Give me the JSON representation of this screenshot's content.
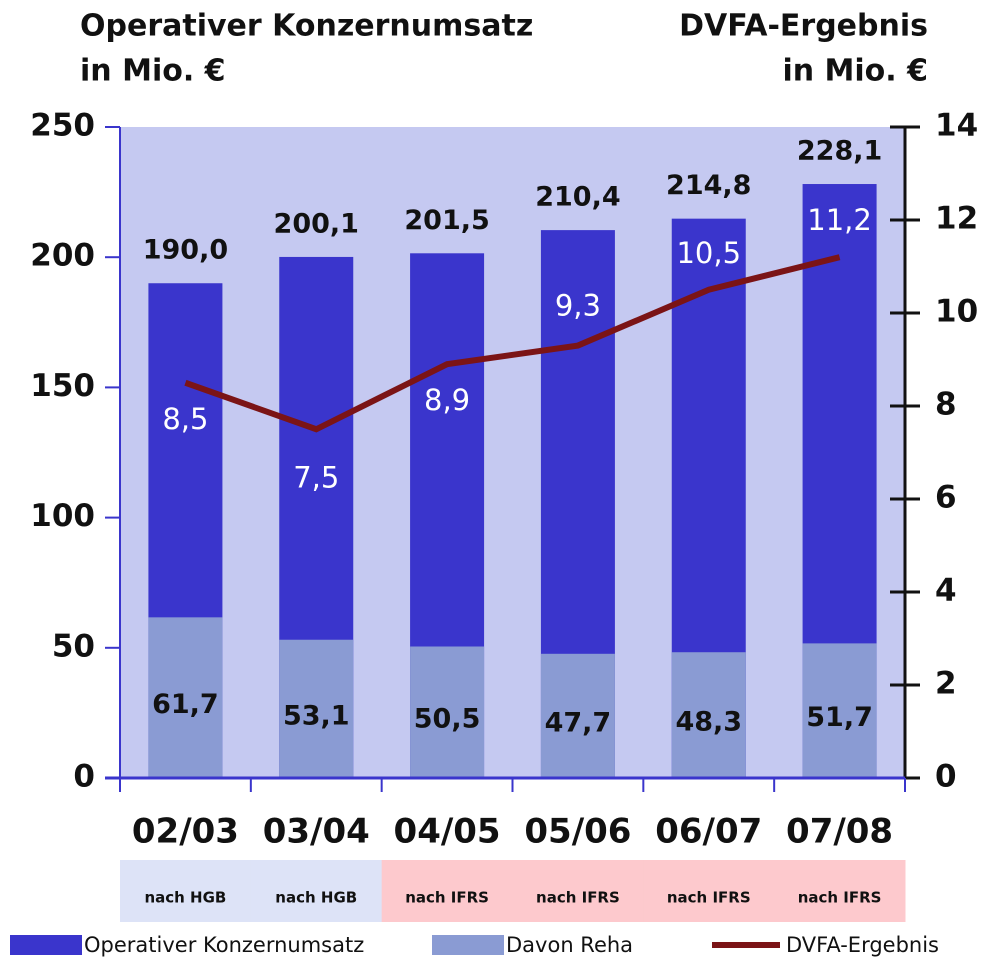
{
  "chart_data": {
    "type": "bar",
    "y_label": [
      "Operativer Konzernumsatz",
      "in Mio. €"
    ],
    "y2_label": [
      "DVFA-Ergebnis",
      "in Mio. €"
    ],
    "categories": [
      "02/03",
      "03/04",
      "04/05",
      "05/06",
      "06/07",
      "07/08"
    ],
    "standards": [
      "nach HGB",
      "nach HGB",
      "nach IFRS",
      "nach IFRS",
      "nach IFRS",
      "nach IFRS"
    ],
    "standard_colors": [
      "#dde3f7",
      "#dde3f7",
      "#fdc9cd",
      "#fdc9cd",
      "#fdc9cd",
      "#fdc9cd"
    ],
    "plot_background": "#c5c9f1",
    "series": [
      {
        "name": "Operativer Konzernumsatz",
        "type": "bar",
        "color": "#3a35cc",
        "values": [
          190.0,
          200.1,
          201.5,
          210.4,
          214.8,
          228.1
        ],
        "value_labels": [
          "190,0",
          "200,1",
          "201,5",
          "210,4",
          "214,8",
          "228,1"
        ]
      },
      {
        "name": "Davon Reha",
        "type": "bar",
        "color": "#8a9bd3",
        "values": [
          61.7,
          53.1,
          50.5,
          47.7,
          48.3,
          51.7
        ],
        "value_labels": [
          "61,7",
          "53,1",
          "50,5",
          "47,7",
          "48,3",
          "51,7"
        ]
      },
      {
        "name": "DVFA-Ergebnis",
        "type": "line",
        "axis": "y2",
        "color": "#7b1416",
        "values": [
          8.5,
          7.5,
          8.9,
          9.3,
          10.5,
          11.2
        ],
        "value_labels": [
          "8,5",
          "7,5",
          "8,9",
          "9,3",
          "10,5",
          "11,2"
        ]
      }
    ],
    "ylim": [
      0,
      250
    ],
    "yticks": [
      0,
      50,
      100,
      150,
      200,
      250
    ],
    "y2lim": [
      0,
      14
    ],
    "y2ticks": [
      0,
      2,
      4,
      6,
      8,
      10,
      12,
      14
    ]
  }
}
